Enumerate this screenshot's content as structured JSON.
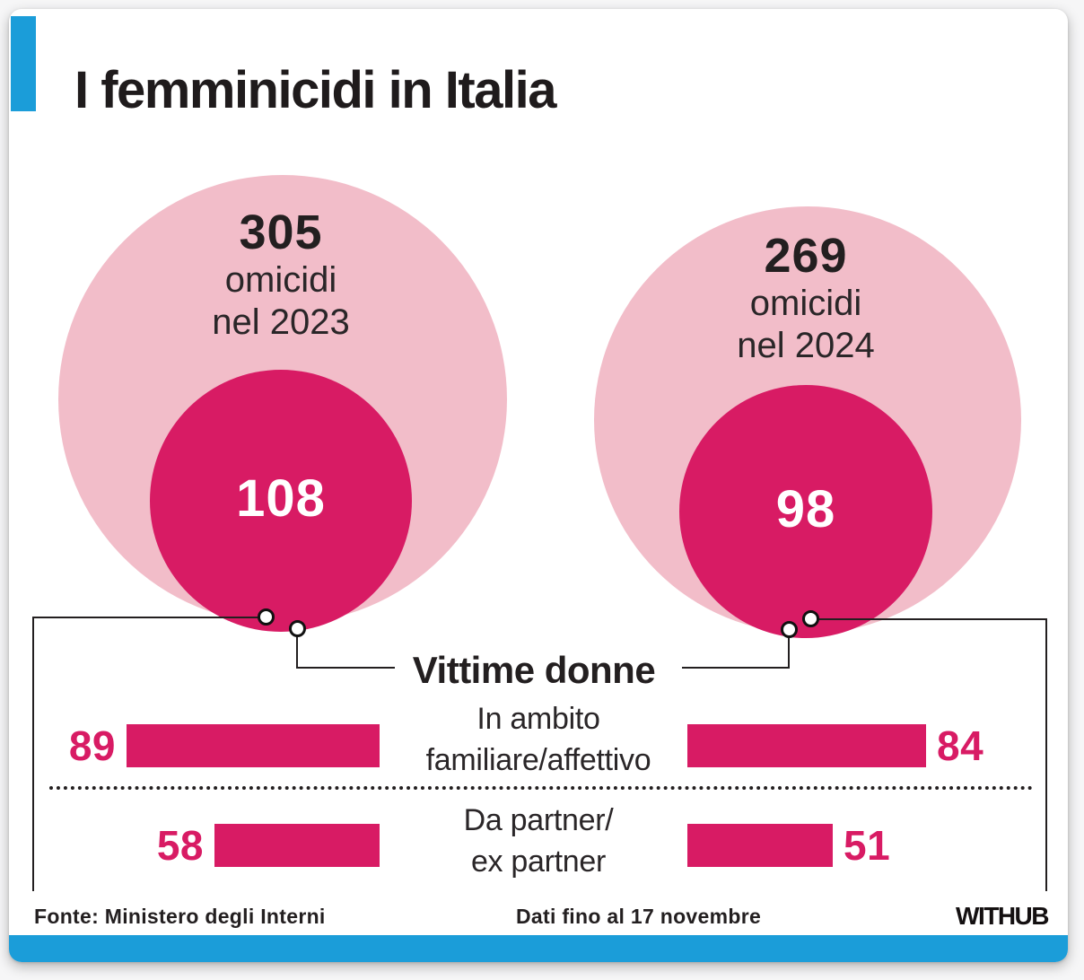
{
  "colors": {
    "accent_blue": "#1b9dd9",
    "magenta": "#d81b64",
    "pink": "#f2bdc9",
    "ink": "#231f20"
  },
  "header": {
    "title": "I femminicidi in Italia"
  },
  "bubbles": {
    "left": {
      "total": "305",
      "sub1": "omicidi",
      "sub2": "nel 2023",
      "inner": "108"
    },
    "right": {
      "total": "269",
      "sub1": "omicidi",
      "sub2": "nel 2024",
      "inner": "98"
    }
  },
  "connector": {
    "label": "Vittime donne"
  },
  "bars": {
    "rows": [
      {
        "label1": "In ambito",
        "label2": "familiare/affettivo",
        "left_value": "89",
        "right_value": "84"
      },
      {
        "label1": "Da partner/",
        "label2": "ex partner",
        "left_value": "58",
        "right_value": "51"
      }
    ]
  },
  "footer": {
    "source": "Fonte: Ministero degli Interni",
    "note": "Dati fino al 17 novembre",
    "logo": "WITHUB"
  },
  "chart_data": {
    "type": "bar",
    "title": "I femminicidi in Italia",
    "source": "Fonte: Ministero degli Interni",
    "note": "Dati fino al 17 novembre",
    "nested_circles": [
      {
        "year": 2023,
        "omicidi_totali": 305,
        "vittime_donne": 108
      },
      {
        "year": 2024,
        "omicidi_totali": 269,
        "vittime_donne": 98
      }
    ],
    "circle_label": "Vittime donne",
    "categories": [
      "In ambito familiare/affettivo",
      "Da partner/ ex partner"
    ],
    "series": [
      {
        "name": "2023",
        "values": [
          89,
          58
        ]
      },
      {
        "name": "2024",
        "values": [
          84,
          51
        ]
      }
    ],
    "legend_position": "center",
    "grid": false,
    "bar_color": "#d81b64",
    "outer_circle_color": "#f2bdc9",
    "inner_circle_color": "#d81b64"
  }
}
